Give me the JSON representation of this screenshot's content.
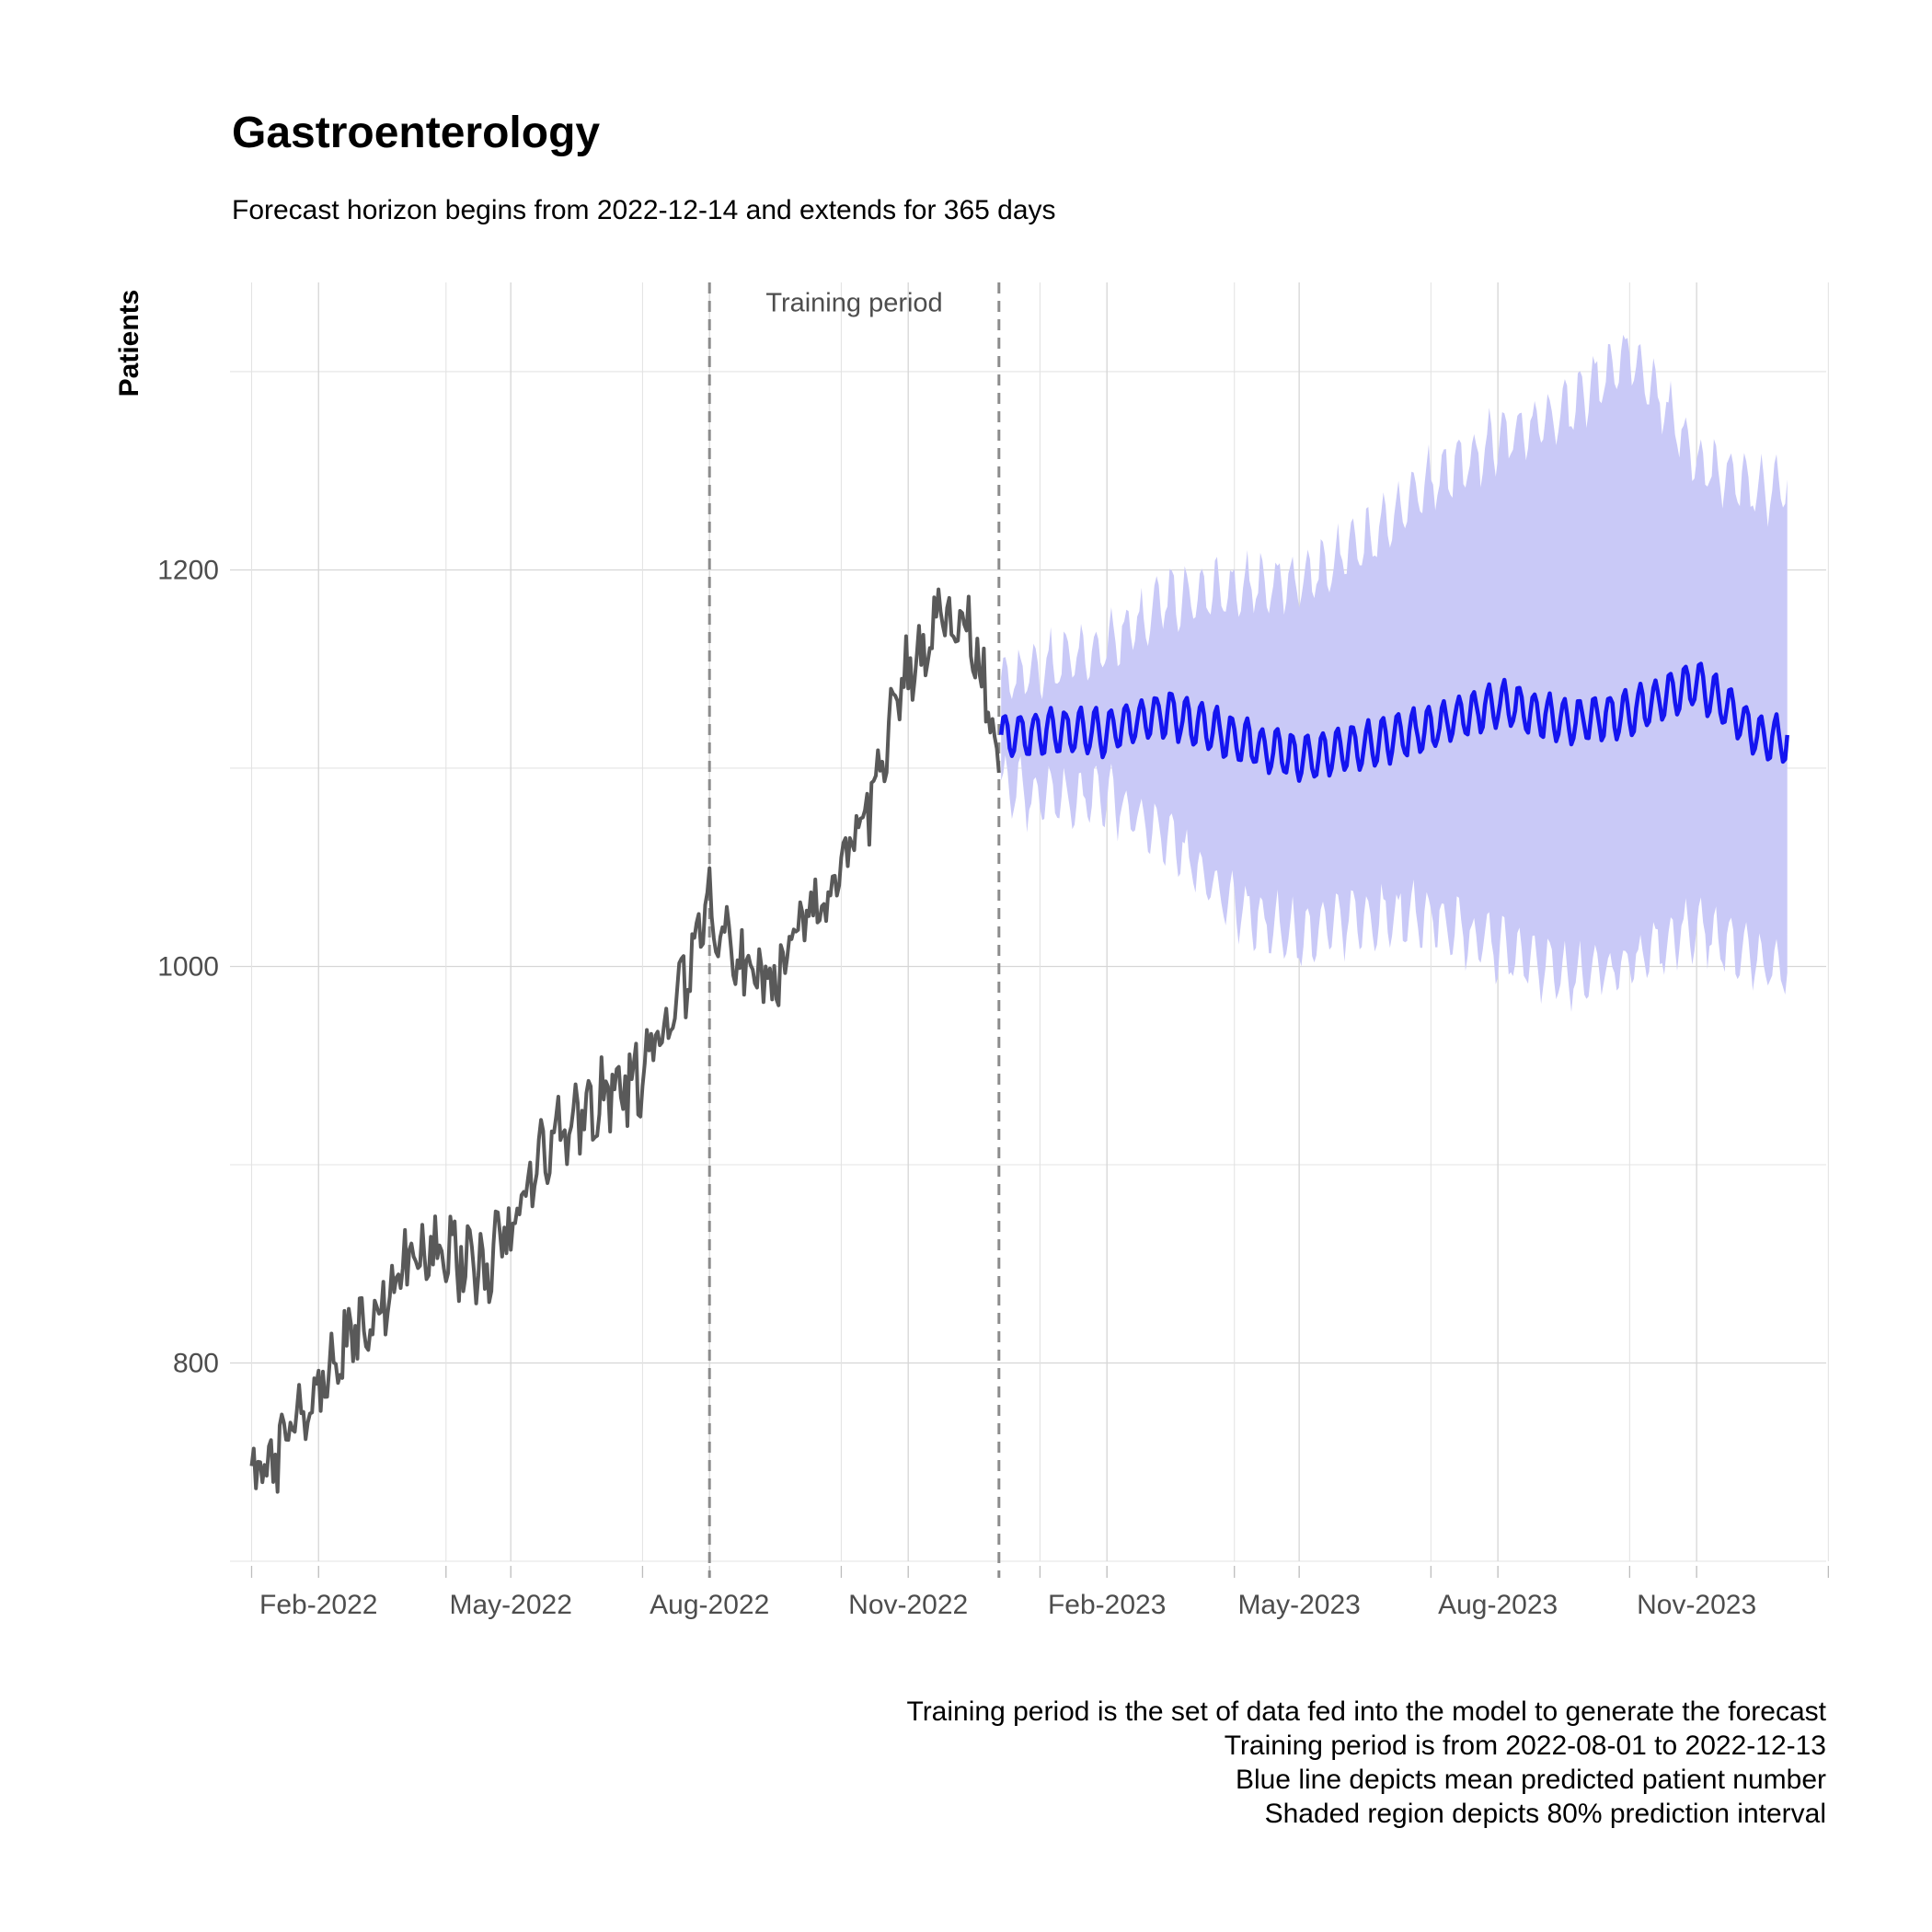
{
  "chart_data": {
    "type": "line",
    "title": "Gastroenterology",
    "subtitle": "Forecast horizon begins from 2022-12-14 and extends for 365 days",
    "xlabel": "",
    "ylabel": "Patients",
    "x_range": [
      "2021-12-22",
      "2023-12-31"
    ],
    "ylim": [
      700,
      1345
    ],
    "y_ticks": [
      800,
      1000,
      1200
    ],
    "y_minor_ticks": [
      700,
      900,
      1100,
      1300
    ],
    "x_ticks": [
      {
        "date": "2022-02-01",
        "label": "Feb-2022"
      },
      {
        "date": "2022-05-01",
        "label": "May-2022"
      },
      {
        "date": "2022-08-01",
        "label": "Aug-2022"
      },
      {
        "date": "2022-11-01",
        "label": "Nov-2022"
      },
      {
        "date": "2023-02-01",
        "label": "Feb-2023"
      },
      {
        "date": "2023-05-01",
        "label": "May-2023"
      },
      {
        "date": "2023-08-01",
        "label": "Aug-2023"
      },
      {
        "date": "2023-11-01",
        "label": "Nov-2023"
      }
    ],
    "x_minor_ticks": [
      "2022-01-01",
      "2022-04-01",
      "2022-07-01",
      "2022-10-01",
      "2023-01-01",
      "2023-04-01",
      "2023-07-01",
      "2023-10-01",
      "2024-01-01"
    ],
    "grid": true,
    "legend": "none",
    "vlines": [
      {
        "date": "2022-08-01",
        "style": "dashed",
        "color": "#8c8c8c"
      },
      {
        "date": "2022-12-13",
        "style": "dashed",
        "color": "#8c8c8c"
      }
    ],
    "annotation": {
      "text": "Training period",
      "date": "2022-10-07",
      "y": 1335
    },
    "caption": [
      "Training period is the set of data fed into the model to generate the forecast",
      "Training period is from 2022-08-01 to 2022-12-13",
      "Blue line depicts mean predicted patient number",
      "Shaded region depicts 80% prediction interval"
    ],
    "colors": {
      "actual": "#595959",
      "forecast": "#1414f0",
      "interval": "#c9c9f7"
    },
    "series": [
      {
        "role": "actual",
        "x": [
          "2022-01-01",
          "2022-01-15",
          "2022-02-01",
          "2022-02-15",
          "2022-03-01",
          "2022-03-15",
          "2022-04-01",
          "2022-04-15",
          "2022-05-01",
          "2022-05-15",
          "2022-06-01",
          "2022-06-15",
          "2022-07-01",
          "2022-07-15",
          "2022-08-01",
          "2022-08-15",
          "2022-09-01",
          "2022-09-15",
          "2022-10-01",
          "2022-10-15",
          "2022-11-01",
          "2022-11-15",
          "2022-12-01",
          "2022-12-13"
        ],
        "values": [
          735,
          760,
          790,
          810,
          830,
          850,
          860,
          845,
          865,
          905,
          925,
          935,
          945,
          975,
          1035,
          1000,
          995,
          1030,
          1040,
          1085,
          1150,
          1175,
          1170,
          1110
        ]
      },
      {
        "role": "forecast-mean",
        "x": [
          "2022-12-14",
          "2023-01-01",
          "2023-02-01",
          "2023-03-01",
          "2023-04-01",
          "2023-05-01",
          "2023-06-01",
          "2023-07-01",
          "2023-08-01",
          "2023-09-01",
          "2023-10-01",
          "2023-11-01",
          "2023-12-01",
          "2023-12-13"
        ],
        "values": [
          1115,
          1118,
          1118,
          1128,
          1115,
          1105,
          1112,
          1120,
          1133,
          1123,
          1128,
          1143,
          1115,
          1115
        ]
      },
      {
        "role": "interval-upper",
        "x": [
          "2022-12-14",
          "2023-01-01",
          "2023-02-01",
          "2023-03-01",
          "2023-04-01",
          "2023-05-01",
          "2023-06-01",
          "2023-07-01",
          "2023-08-01",
          "2023-09-01",
          "2023-10-01",
          "2023-11-01",
          "2023-12-01",
          "2023-12-13"
        ],
        "values": [
          1145,
          1150,
          1160,
          1185,
          1190,
          1195,
          1215,
          1245,
          1265,
          1280,
          1310,
          1255,
          1240,
          1240
        ]
      },
      {
        "role": "interval-lower",
        "x": [
          "2022-12-14",
          "2023-01-01",
          "2023-02-01",
          "2023-03-01",
          "2023-04-01",
          "2023-05-01",
          "2023-06-01",
          "2023-07-01",
          "2023-08-01",
          "2023-09-01",
          "2023-10-01",
          "2023-11-01",
          "2023-12-01",
          "2023-12-13"
        ],
        "values": [
          1090,
          1085,
          1085,
          1065,
          1030,
          1015,
          1025,
          1025,
          1010,
          995,
          1000,
          1020,
          1000,
          1000
        ]
      }
    ]
  }
}
